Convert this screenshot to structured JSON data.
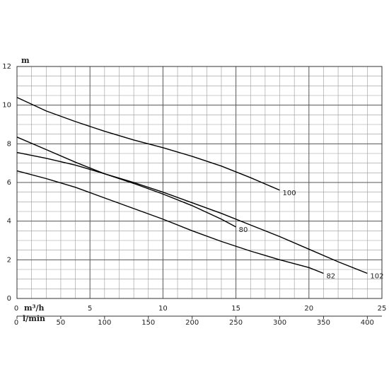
{
  "chart_data": {
    "type": "line",
    "ylabel": "m",
    "xlabel": "m³/h",
    "x2label": "l/min",
    "xlim": [
      0,
      25
    ],
    "xticks": [
      0,
      5,
      10,
      15,
      20,
      25
    ],
    "x2lim": [
      0,
      416.67
    ],
    "x2ticks": [
      0,
      50,
      100,
      150,
      200,
      250,
      300,
      350,
      400
    ],
    "ylim": [
      0,
      12
    ],
    "yticks": [
      0,
      2,
      4,
      6,
      8,
      10,
      12
    ],
    "grid": true,
    "series": [
      {
        "name": "100",
        "color": "#000000",
        "x": [
          0,
          2,
          4,
          6,
          8,
          10,
          12,
          14,
          16,
          18
        ],
        "values": [
          10.4,
          9.7,
          9.15,
          8.65,
          8.2,
          7.8,
          7.35,
          6.85,
          6.25,
          5.6
        ]
      },
      {
        "name": "80",
        "color": "#000000",
        "x": [
          0,
          2,
          4,
          6,
          8,
          10,
          12,
          14,
          15
        ],
        "values": [
          8.35,
          7.7,
          7.05,
          6.45,
          5.95,
          5.4,
          4.8,
          4.1,
          3.7
        ]
      },
      {
        "name": "102",
        "color": "#000000",
        "x": [
          0,
          2,
          4,
          6,
          8,
          10,
          12,
          14,
          16,
          18,
          20,
          22,
          24
        ],
        "values": [
          7.55,
          7.25,
          6.9,
          6.45,
          6.0,
          5.5,
          4.95,
          4.4,
          3.8,
          3.2,
          2.55,
          1.9,
          1.3
        ]
      },
      {
        "name": "82",
        "color": "#000000",
        "x": [
          0,
          2,
          4,
          6,
          8,
          10,
          12,
          14,
          16,
          18,
          20,
          21
        ],
        "values": [
          6.6,
          6.2,
          5.75,
          5.2,
          4.65,
          4.1,
          3.5,
          2.95,
          2.45,
          2.0,
          1.6,
          1.3
        ]
      }
    ]
  }
}
